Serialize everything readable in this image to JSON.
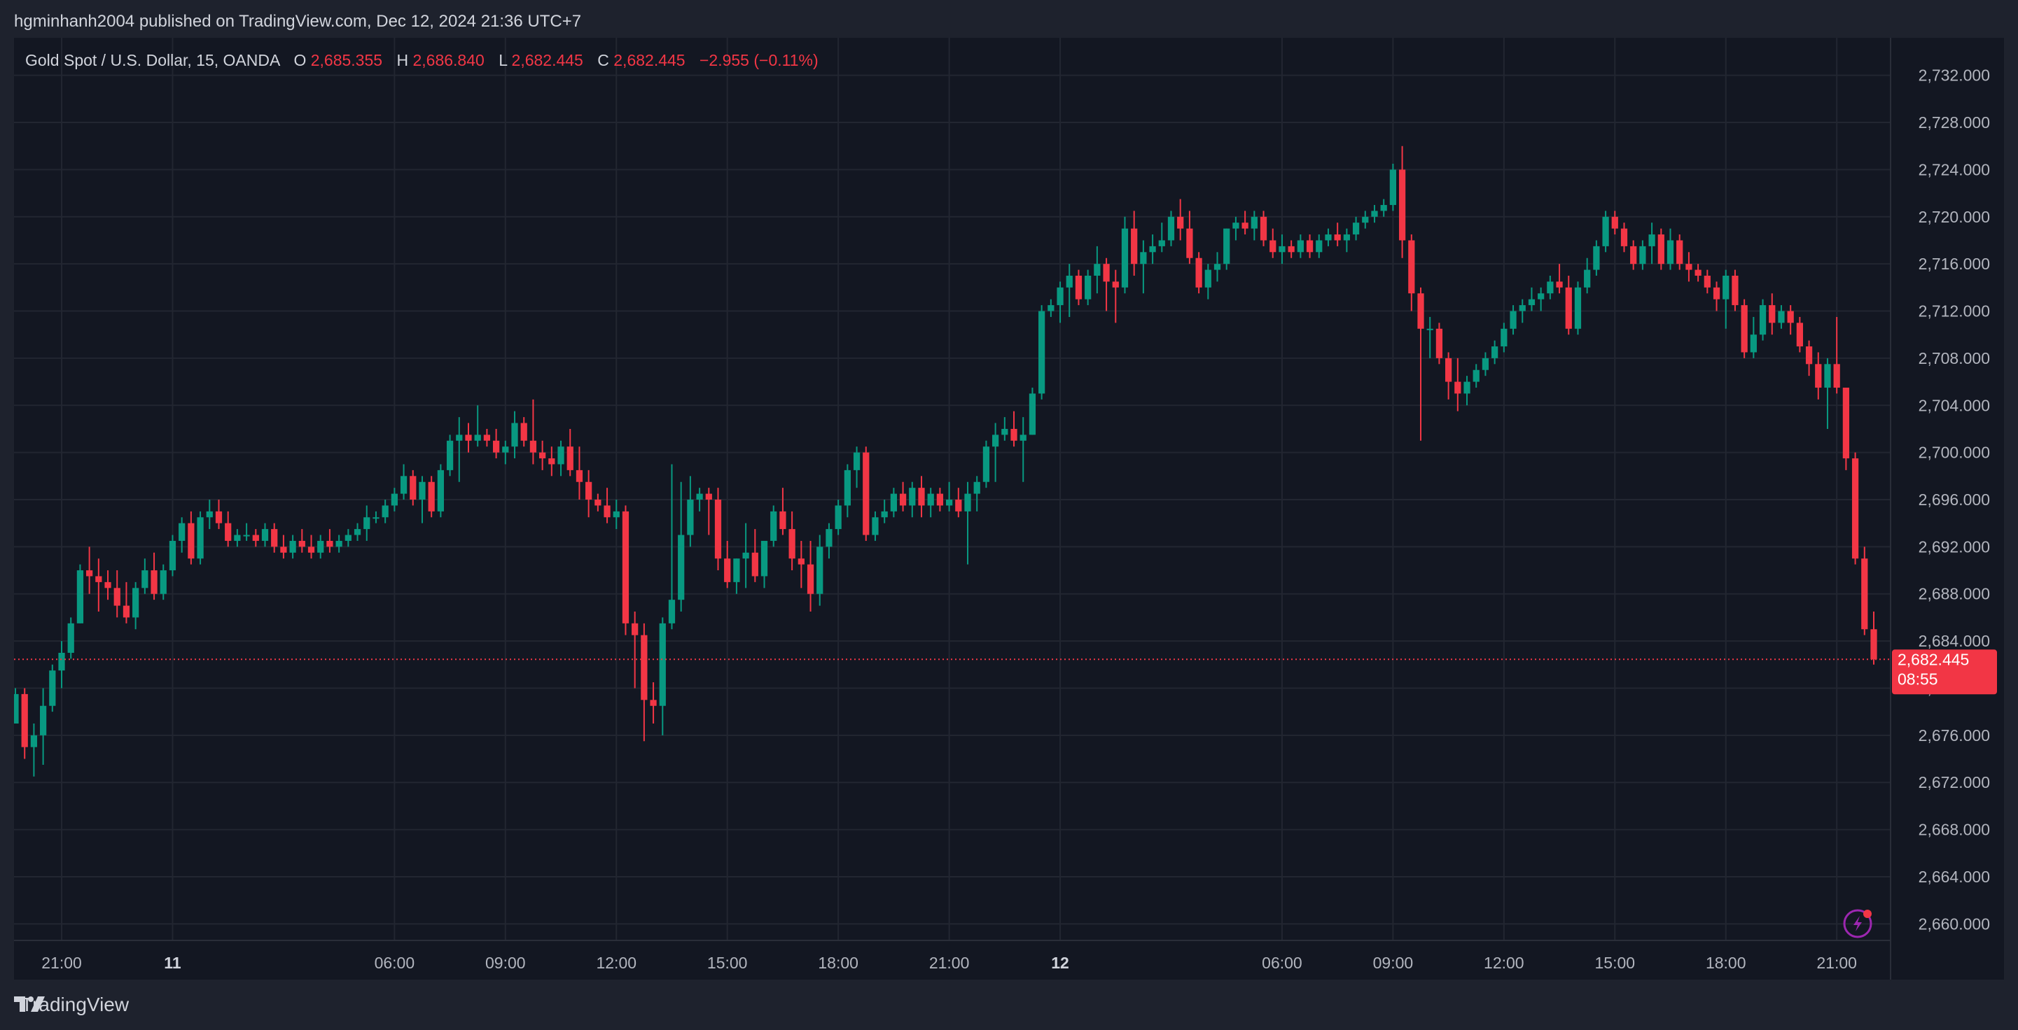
{
  "header": {
    "published": "hgminhanh2004 published on TradingView.com, Dec 12, 2024 21:36 UTC+7"
  },
  "legend": {
    "symbol": "Gold Spot / U.S. Dollar, 15, OANDA",
    "o_label": "O",
    "o_value": "2,685.355",
    "h_label": "H",
    "h_value": "2,686.840",
    "l_label": "L",
    "l_value": "2,682.445",
    "c_label": "C",
    "c_value": "2,682.445",
    "change": "−2.955 (−0.11%)"
  },
  "price_tag": {
    "price": "2,682.445",
    "countdown": "08:55"
  },
  "footer": {
    "brand": "TradingView",
    "logo_icon": "tradingview-logo-icon"
  },
  "colors": {
    "up": "#089981",
    "down": "#f23645",
    "background": "#131722",
    "text": "#b2b5be",
    "grid": "#222631"
  },
  "chart_data": {
    "type": "candlestick",
    "ylim": [
      2658,
      2734
    ],
    "y_ticks": [
      "2,660.000",
      "2,664.000",
      "2,668.000",
      "2,672.000",
      "2,676.000",
      "2,680.000",
      "2,684.000",
      "2,688.000",
      "2,692.000",
      "2,696.000",
      "2,700.000",
      "2,704.000",
      "2,708.000",
      "2,712.000",
      "2,716.000",
      "2,720.000",
      "2,724.000",
      "2,728.000",
      "2,732.000"
    ],
    "x_ticks": [
      {
        "label": "21:00",
        "bar": 5,
        "bold": false
      },
      {
        "label": "11",
        "bar": 17,
        "bold": true
      },
      {
        "label": "06:00",
        "bar": 41,
        "bold": false
      },
      {
        "label": "09:00",
        "bar": 53,
        "bold": false
      },
      {
        "label": "12:00",
        "bar": 65,
        "bold": false
      },
      {
        "label": "15:00",
        "bar": 77,
        "bold": false
      },
      {
        "label": "18:00",
        "bar": 89,
        "bold": false
      },
      {
        "label": "21:00",
        "bar": 101,
        "bold": false
      },
      {
        "label": "12",
        "bar": 113,
        "bold": true
      },
      {
        "label": "06:00",
        "bar": 137,
        "bold": false
      },
      {
        "label": "09:00",
        "bar": 149,
        "bold": false
      },
      {
        "label": "12:00",
        "bar": 161,
        "bold": false
      },
      {
        "label": "15:00",
        "bar": 173,
        "bold": false
      },
      {
        "label": "18:00",
        "bar": 185,
        "bold": false
      },
      {
        "label": "21:00",
        "bar": 197,
        "bold": false
      }
    ],
    "last_price": 2682.445,
    "ohlc": [
      [
        2677.0,
        2680.0,
        2677.0,
        2679.5
      ],
      [
        2679.5,
        2680.0,
        2674.0,
        2675.0
      ],
      [
        2675.0,
        2677.0,
        2672.5,
        2676.0
      ],
      [
        2676.0,
        2680.0,
        2673.5,
        2678.5
      ],
      [
        2678.5,
        2682.0,
        2678.0,
        2681.5
      ],
      [
        2681.5,
        2684.0,
        2680.0,
        2683.0
      ],
      [
        2683.0,
        2686.0,
        2682.5,
        2685.5
      ],
      [
        2685.5,
        2690.5,
        2685.5,
        2690.0
      ],
      [
        2690.0,
        2692.0,
        2688.0,
        2689.5
      ],
      [
        2689.5,
        2691.0,
        2686.5,
        2689.0
      ],
      [
        2689.0,
        2690.0,
        2687.5,
        2688.5
      ],
      [
        2688.5,
        2690.0,
        2686.0,
        2687.0
      ],
      [
        2687.0,
        2689.0,
        2685.5,
        2686.0
      ],
      [
        2686.0,
        2689.0,
        2685.0,
        2688.5
      ],
      [
        2688.5,
        2691.0,
        2688.0,
        2690.0
      ],
      [
        2690.0,
        2691.5,
        2687.5,
        2688.0
      ],
      [
        2688.0,
        2690.5,
        2687.5,
        2690.0
      ],
      [
        2690.0,
        2693.0,
        2689.5,
        2692.5
      ],
      [
        2692.5,
        2694.5,
        2691.5,
        2694.0
      ],
      [
        2694.0,
        2695.0,
        2690.5,
        2691.0
      ],
      [
        2691.0,
        2695.0,
        2690.5,
        2694.5
      ],
      [
        2694.5,
        2696.0,
        2693.5,
        2695.0
      ],
      [
        2695.0,
        2696.0,
        2693.5,
        2694.0
      ],
      [
        2694.0,
        2695.0,
        2692.0,
        2692.5
      ],
      [
        2692.5,
        2693.5,
        2692.0,
        2693.0
      ],
      [
        2693.0,
        2694.0,
        2692.5,
        2693.0
      ],
      [
        2693.0,
        2693.5,
        2692.0,
        2692.5
      ],
      [
        2692.5,
        2694.0,
        2692.0,
        2693.5
      ],
      [
        2693.5,
        2694.0,
        2691.5,
        2692.0
      ],
      [
        2692.0,
        2693.0,
        2691.0,
        2691.5
      ],
      [
        2691.5,
        2693.0,
        2691.0,
        2692.5
      ],
      [
        2692.5,
        2693.5,
        2691.5,
        2692.0
      ],
      [
        2692.0,
        2693.0,
        2691.0,
        2691.5
      ],
      [
        2691.5,
        2693.0,
        2691.0,
        2692.5
      ],
      [
        2692.5,
        2693.5,
        2691.5,
        2692.0
      ],
      [
        2692.0,
        2693.0,
        2691.5,
        2692.5
      ],
      [
        2692.5,
        2693.5,
        2692.0,
        2693.0
      ],
      [
        2693.0,
        2694.0,
        2692.5,
        2693.5
      ],
      [
        2693.5,
        2695.5,
        2692.5,
        2694.5
      ],
      [
        2694.5,
        2695.0,
        2694.0,
        2694.5
      ],
      [
        2694.5,
        2696.0,
        2694.0,
        2695.5
      ],
      [
        2695.5,
        2697.0,
        2695.0,
        2696.5
      ],
      [
        2696.5,
        2699.0,
        2696.0,
        2698.0
      ],
      [
        2698.0,
        2698.5,
        2695.5,
        2696.0
      ],
      [
        2696.0,
        2698.0,
        2694.0,
        2697.5
      ],
      [
        2697.5,
        2698.0,
        2694.5,
        2695.0
      ],
      [
        2695.0,
        2699.0,
        2694.5,
        2698.5
      ],
      [
        2698.5,
        2701.5,
        2698.0,
        2701.0
      ],
      [
        2701.0,
        2703.0,
        2697.5,
        2701.5
      ],
      [
        2701.5,
        2702.5,
        2700.0,
        2701.0
      ],
      [
        2701.0,
        2704.0,
        2700.5,
        2701.5
      ],
      [
        2701.5,
        2702.0,
        2700.5,
        2701.0
      ],
      [
        2701.0,
        2702.0,
        2699.5,
        2700.0
      ],
      [
        2700.0,
        2701.0,
        2699.0,
        2700.5
      ],
      [
        2700.5,
        2703.5,
        2699.5,
        2702.5
      ],
      [
        2702.5,
        2703.0,
        2700.5,
        2701.0
      ],
      [
        2701.0,
        2704.5,
        2699.0,
        2700.0
      ],
      [
        2700.0,
        2701.0,
        2698.5,
        2699.5
      ],
      [
        2699.5,
        2700.5,
        2698.0,
        2699.0
      ],
      [
        2699.0,
        2701.0,
        2698.0,
        2700.5
      ],
      [
        2700.5,
        2702.0,
        2698.0,
        2698.5
      ],
      [
        2698.5,
        2700.5,
        2696.0,
        2697.5
      ],
      [
        2697.5,
        2698.5,
        2694.5,
        2696.0
      ],
      [
        2696.0,
        2696.5,
        2695.0,
        2695.5
      ],
      [
        2695.5,
        2697.0,
        2694.0,
        2694.5
      ],
      [
        2694.5,
        2696.0,
        2693.5,
        2695.0
      ],
      [
        2695.0,
        2695.5,
        2684.5,
        2685.5
      ],
      [
        2685.5,
        2686.5,
        2680.0,
        2684.5
      ],
      [
        2684.5,
        2685.5,
        2675.5,
        2679.0
      ],
      [
        2679.0,
        2680.5,
        2677.0,
        2678.5
      ],
      [
        2678.5,
        2686.0,
        2676.0,
        2685.5
      ],
      [
        2685.5,
        2699.0,
        2685.0,
        2687.5
      ],
      [
        2687.5,
        2697.5,
        2686.5,
        2693.0
      ],
      [
        2693.0,
        2698.0,
        2692.0,
        2696.0
      ],
      [
        2696.0,
        2697.0,
        2695.0,
        2696.5
      ],
      [
        2696.5,
        2697.0,
        2693.0,
        2696.0
      ],
      [
        2696.0,
        2697.0,
        2690.0,
        2691.0
      ],
      [
        2691.0,
        2692.5,
        2688.5,
        2689.0
      ],
      [
        2689.0,
        2691.0,
        2688.0,
        2691.0
      ],
      [
        2691.0,
        2694.0,
        2688.5,
        2691.5
      ],
      [
        2691.5,
        2693.5,
        2689.0,
        2689.5
      ],
      [
        2689.5,
        2692.5,
        2688.5,
        2692.5
      ],
      [
        2692.5,
        2695.5,
        2692.0,
        2695.0
      ],
      [
        2695.0,
        2697.0,
        2693.0,
        2693.5
      ],
      [
        2693.5,
        2695.0,
        2690.0,
        2691.0
      ],
      [
        2691.0,
        2692.5,
        2688.5,
        2690.5
      ],
      [
        2690.5,
        2692.5,
        2686.5,
        2688.0
      ],
      [
        2688.0,
        2693.0,
        2687.0,
        2692.0
      ],
      [
        2692.0,
        2694.0,
        2691.0,
        2693.5
      ],
      [
        2693.5,
        2696.0,
        2693.0,
        2695.5
      ],
      [
        2695.5,
        2699.0,
        2694.5,
        2698.5
      ],
      [
        2698.5,
        2700.5,
        2697.0,
        2700.0
      ],
      [
        2700.0,
        2700.5,
        2692.5,
        2693.0
      ],
      [
        2693.0,
        2695.0,
        2692.5,
        2694.5
      ],
      [
        2694.5,
        2696.0,
        2694.0,
        2695.0
      ],
      [
        2695.0,
        2697.0,
        2694.5,
        2696.5
      ],
      [
        2696.5,
        2697.5,
        2695.0,
        2695.5
      ],
      [
        2695.5,
        2697.5,
        2694.5,
        2697.0
      ],
      [
        2697.0,
        2698.0,
        2694.5,
        2695.5
      ],
      [
        2695.5,
        2697.0,
        2694.5,
        2696.5
      ],
      [
        2696.5,
        2697.0,
        2695.0,
        2695.5
      ],
      [
        2695.5,
        2697.5,
        2695.0,
        2696.0
      ],
      [
        2696.0,
        2697.0,
        2694.5,
        2695.0
      ],
      [
        2695.0,
        2697.5,
        2690.5,
        2696.5
      ],
      [
        2696.5,
        2698.0,
        2695.0,
        2697.5
      ],
      [
        2697.5,
        2701.0,
        2697.0,
        2700.5
      ],
      [
        2700.5,
        2702.5,
        2697.5,
        2701.5
      ],
      [
        2701.5,
        2703.0,
        2701.0,
        2702.0
      ],
      [
        2702.0,
        2703.5,
        2700.5,
        2701.0
      ],
      [
        2701.0,
        2703.0,
        2697.5,
        2701.5
      ],
      [
        2701.5,
        2705.5,
        2701.5,
        2705.0
      ],
      [
        2705.0,
        2712.5,
        2704.5,
        2712.0
      ],
      [
        2712.0,
        2713.0,
        2711.5,
        2712.5
      ],
      [
        2712.5,
        2714.5,
        2711.0,
        2714.0
      ],
      [
        2714.0,
        2716.0,
        2711.5,
        2715.0
      ],
      [
        2715.0,
        2715.5,
        2712.5,
        2713.0
      ],
      [
        2713.0,
        2715.5,
        2712.5,
        2715.0
      ],
      [
        2715.0,
        2717.5,
        2713.5,
        2716.0
      ],
      [
        2716.0,
        2716.5,
        2712.0,
        2714.5
      ],
      [
        2714.5,
        2715.5,
        2711.0,
        2714.0
      ],
      [
        2714.0,
        2720.0,
        2713.5,
        2719.0
      ],
      [
        2719.0,
        2720.5,
        2715.0,
        2716.0
      ],
      [
        2716.0,
        2718.0,
        2713.5,
        2717.0
      ],
      [
        2717.0,
        2718.5,
        2716.0,
        2717.5
      ],
      [
        2717.5,
        2719.5,
        2717.0,
        2718.0
      ],
      [
        2718.0,
        2720.5,
        2717.5,
        2720.0
      ],
      [
        2720.0,
        2721.5,
        2718.0,
        2719.0
      ],
      [
        2719.0,
        2720.5,
        2716.0,
        2716.5
      ],
      [
        2716.5,
        2717.0,
        2713.5,
        2714.0
      ],
      [
        2714.0,
        2716.0,
        2713.0,
        2715.5
      ],
      [
        2715.5,
        2717.0,
        2714.5,
        2716.0
      ],
      [
        2716.0,
        2719.0,
        2715.5,
        2719.0
      ],
      [
        2719.0,
        2720.0,
        2718.0,
        2719.5
      ],
      [
        2719.5,
        2720.5,
        2718.5,
        2719.0
      ],
      [
        2719.0,
        2720.5,
        2718.0,
        2720.0
      ],
      [
        2720.0,
        2720.5,
        2717.5,
        2718.0
      ],
      [
        2718.0,
        2719.0,
        2716.5,
        2717.0
      ],
      [
        2717.0,
        2718.5,
        2716.0,
        2717.5
      ],
      [
        2717.5,
        2718.0,
        2716.5,
        2717.0
      ],
      [
        2717.0,
        2718.5,
        2716.5,
        2718.0
      ],
      [
        2718.0,
        2718.5,
        2716.5,
        2717.0
      ],
      [
        2717.0,
        2718.5,
        2716.5,
        2718.0
      ],
      [
        2718.0,
        2719.0,
        2717.5,
        2718.5
      ],
      [
        2718.5,
        2719.5,
        2717.5,
        2718.0
      ],
      [
        2718.0,
        2719.0,
        2717.0,
        2718.5
      ],
      [
        2718.5,
        2720.0,
        2718.0,
        2719.5
      ],
      [
        2719.5,
        2720.5,
        2719.0,
        2720.0
      ],
      [
        2720.0,
        2721.0,
        2719.5,
        2720.5
      ],
      [
        2720.5,
        2721.5,
        2720.0,
        2721.0
      ],
      [
        2721.0,
        2724.5,
        2720.5,
        2724.0
      ],
      [
        2724.0,
        2726.0,
        2716.5,
        2718.0
      ],
      [
        2718.0,
        2718.5,
        2712.0,
        2713.5
      ],
      [
        2713.5,
        2714.0,
        2701.0,
        2710.5
      ],
      [
        2710.5,
        2711.5,
        2708.0,
        2710.5
      ],
      [
        2710.5,
        2711.0,
        2707.5,
        2708.0
      ],
      [
        2708.0,
        2708.5,
        2704.5,
        2706.0
      ],
      [
        2706.0,
        2708.0,
        2703.5,
        2705.0
      ],
      [
        2705.0,
        2706.5,
        2704.0,
        2706.0
      ],
      [
        2706.0,
        2707.5,
        2705.5,
        2707.0
      ],
      [
        2707.0,
        2708.5,
        2706.5,
        2708.0
      ],
      [
        2708.0,
        2709.5,
        2707.5,
        2709.0
      ],
      [
        2709.0,
        2711.0,
        2708.5,
        2710.5
      ],
      [
        2710.5,
        2712.5,
        2710.0,
        2712.0
      ],
      [
        2712.0,
        2713.0,
        2711.0,
        2712.5
      ],
      [
        2712.5,
        2714.0,
        2712.0,
        2713.0
      ],
      [
        2713.0,
        2714.0,
        2712.0,
        2713.5
      ],
      [
        2713.5,
        2715.0,
        2713.0,
        2714.5
      ],
      [
        2714.5,
        2716.0,
        2713.5,
        2714.0
      ],
      [
        2714.0,
        2715.0,
        2710.0,
        2710.5
      ],
      [
        2710.5,
        2714.5,
        2710.0,
        2714.0
      ],
      [
        2714.0,
        2716.5,
        2713.5,
        2715.5
      ],
      [
        2715.5,
        2718.0,
        2715.0,
        2717.5
      ],
      [
        2717.5,
        2720.5,
        2717.0,
        2720.0
      ],
      [
        2720.0,
        2720.5,
        2718.5,
        2719.0
      ],
      [
        2719.0,
        2719.5,
        2717.0,
        2717.5
      ],
      [
        2717.5,
        2718.0,
        2715.5,
        2716.0
      ],
      [
        2716.0,
        2718.0,
        2715.5,
        2717.5
      ],
      [
        2717.5,
        2719.5,
        2716.0,
        2718.5
      ],
      [
        2718.5,
        2719.0,
        2715.5,
        2716.0
      ],
      [
        2716.0,
        2719.0,
        2715.5,
        2718.0
      ],
      [
        2718.0,
        2718.5,
        2715.5,
        2716.0
      ],
      [
        2716.0,
        2717.0,
        2714.5,
        2715.5
      ],
      [
        2715.5,
        2716.0,
        2714.5,
        2715.0
      ],
      [
        2715.0,
        2715.5,
        2713.5,
        2714.0
      ],
      [
        2714.0,
        2714.5,
        2712.0,
        2713.0
      ],
      [
        2713.0,
        2715.5,
        2710.5,
        2715.0
      ],
      [
        2715.0,
        2715.5,
        2712.0,
        2712.5
      ],
      [
        2712.5,
        2713.0,
        2708.0,
        2708.5
      ],
      [
        2708.5,
        2711.5,
        2708.0,
        2710.0
      ],
      [
        2710.0,
        2713.0,
        2709.5,
        2712.5
      ],
      [
        2712.5,
        2713.5,
        2710.0,
        2711.0
      ],
      [
        2711.0,
        2712.5,
        2710.5,
        2712.0
      ],
      [
        2712.0,
        2712.5,
        2710.0,
        2711.0
      ],
      [
        2711.0,
        2711.5,
        2708.5,
        2709.0
      ],
      [
        2709.0,
        2709.5,
        2706.5,
        2707.5
      ],
      [
        2707.5,
        2708.5,
        2704.5,
        2705.5
      ],
      [
        2705.5,
        2708.0,
        2702.0,
        2707.5
      ],
      [
        2707.5,
        2711.5,
        2705.0,
        2705.5
      ],
      [
        2705.5,
        2705.5,
        2698.5,
        2699.5
      ],
      [
        2699.5,
        2700.0,
        2690.5,
        2691.0
      ],
      [
        2691.0,
        2692.0,
        2684.5,
        2685.0
      ],
      [
        2685.0,
        2686.5,
        2682.0,
        2682.445
      ]
    ]
  }
}
